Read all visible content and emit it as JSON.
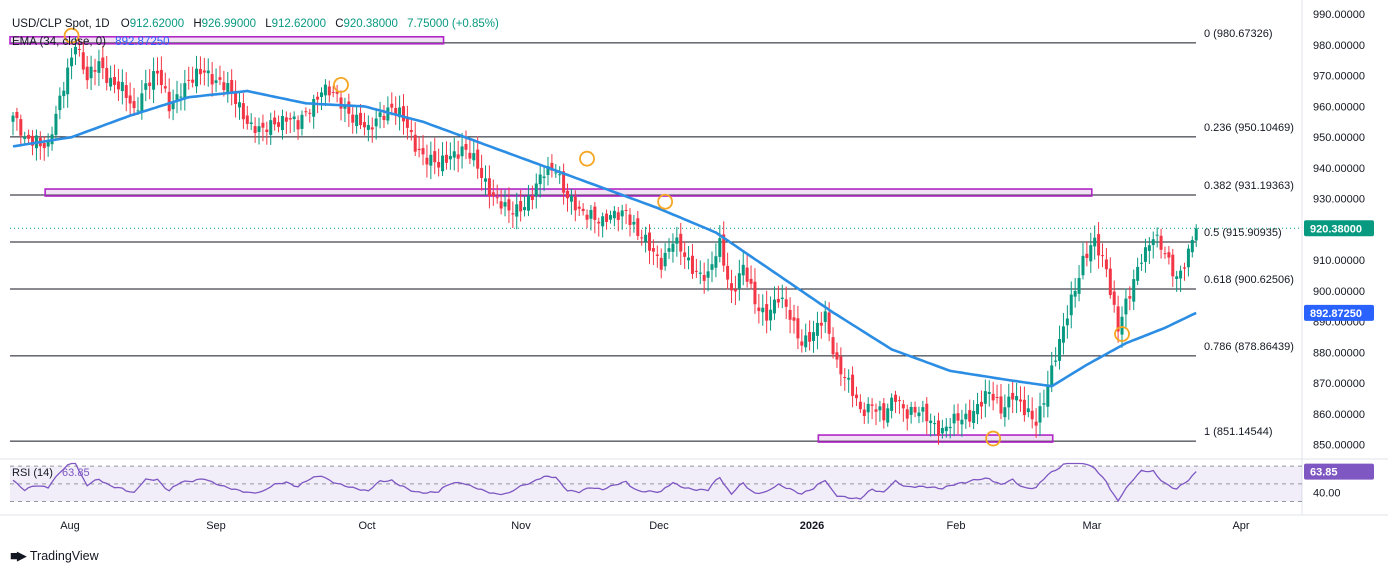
{
  "header": {
    "symbol": "USD/CLP Spot, 1D",
    "o_label": "O",
    "o": "912.62000",
    "h_label": "H",
    "h": "926.99000",
    "l_label": "L",
    "l": "912.62000",
    "c_label": "C",
    "c": "920.38000",
    "change": "7.75000 (+0.85%)",
    "ema_label": "EMA (34, close, 0)",
    "ema_value": "892.87250"
  },
  "colors": {
    "up": "#089981",
    "down": "#f23645",
    "ema": "#2b8de3",
    "fib": "#131722",
    "zone": "#b026c7",
    "circle": "#f5a623",
    "rsi": "#7e57c2",
    "price_tag": "#089981",
    "ema_tag": "#2962ff"
  },
  "chart_data": [
    {
      "type": "candlestick",
      "title": "USD/CLP Spot, 1D",
      "ylim": [
        846,
        992
      ],
      "y_ticks": [
        "990.00000",
        "980.00000",
        "970.00000",
        "960.00000",
        "950.00000",
        "940.00000",
        "930.00000",
        "920.00000",
        "910.00000",
        "900.00000",
        "890.00000",
        "880.00000",
        "870.00000",
        "860.00000",
        "850.00000"
      ],
      "x_ticks": [
        "Aug",
        "Sep",
        "Oct",
        "Nov",
        "Dec",
        "2026",
        "Feb",
        "Mar",
        "Apr"
      ],
      "x_tick_bold": [
        false,
        false,
        false,
        false,
        false,
        true,
        false,
        false,
        false
      ],
      "fib_levels": [
        {
          "label": "0 (980.67326)",
          "value": 980.67326
        },
        {
          "label": "0.236 (950.10469)",
          "value": 950.10469
        },
        {
          "label": "0.382 (931.19363)",
          "value": 931.19363
        },
        {
          "label": "0.5 (915.90935)",
          "value": 915.90935
        },
        {
          "label": "0.618 (900.62506)",
          "value": 900.62506
        },
        {
          "label": "0.786 (878.86439)",
          "value": 878.86439
        },
        {
          "label": "1 (851.14544)",
          "value": 851.14544
        }
      ],
      "last_price": {
        "label": "920.38000",
        "value": 920.38
      },
      "ema_last": {
        "label": "892.87250",
        "value": 892.8725
      },
      "price_anchors": [
        [
          0,
          957
        ],
        [
          3,
          948
        ],
        [
          6,
          950
        ],
        [
          9,
          947
        ],
        [
          11,
          956
        ],
        [
          14,
          972
        ],
        [
          16,
          982
        ],
        [
          19,
          968
        ],
        [
          22,
          974
        ],
        [
          25,
          969
        ],
        [
          28,
          965
        ],
        [
          31,
          958
        ],
        [
          34,
          968
        ],
        [
          37,
          970
        ],
        [
          40,
          960
        ],
        [
          43,
          966
        ],
        [
          46,
          968
        ],
        [
          49,
          972
        ],
        [
          52,
          969
        ],
        [
          55,
          965
        ],
        [
          58,
          960
        ],
        [
          61,
          954
        ],
        [
          64,
          951
        ],
        [
          67,
          955
        ],
        [
          70,
          957
        ],
        [
          73,
          953
        ],
        [
          76,
          960
        ],
        [
          79,
          966
        ],
        [
          82,
          963
        ],
        [
          85,
          960
        ],
        [
          88,
          956
        ],
        [
          91,
          951
        ],
        [
          94,
          958
        ],
        [
          97,
          960
        ],
        [
          100,
          955
        ],
        [
          103,
          948
        ],
        [
          106,
          943
        ],
        [
          109,
          940
        ],
        [
          112,
          945
        ],
        [
          115,
          946
        ],
        [
          118,
          942
        ],
        [
          121,
          936
        ],
        [
          124,
          929
        ],
        [
          127,
          925
        ],
        [
          130,
          928
        ],
        [
          133,
          931
        ],
        [
          136,
          938
        ],
        [
          139,
          941
        ],
        [
          142,
          930
        ],
        [
          145,
          925
        ],
        [
          148,
          926
        ],
        [
          151,
          922
        ],
        [
          154,
          924
        ],
        [
          157,
          927
        ],
        [
          160,
          918
        ],
        [
          163,
          914
        ],
        [
          166,
          910
        ],
        [
          169,
          916
        ],
        [
          172,
          911
        ],
        [
          175,
          907
        ],
        [
          178,
          904
        ],
        [
          181,
          915
        ],
        [
          184,
          900
        ],
        [
          187,
          907
        ],
        [
          190,
          896
        ],
        [
          193,
          893
        ],
        [
          196,
          897
        ],
        [
          199,
          892
        ],
        [
          202,
          884
        ],
        [
          205,
          885
        ],
        [
          208,
          892
        ],
        [
          211,
          877
        ],
        [
          214,
          869
        ],
        [
          217,
          861
        ],
        [
          220,
          864
        ],
        [
          223,
          858
        ],
        [
          226,
          866
        ],
        [
          229,
          861
        ],
        [
          232,
          860
        ],
        [
          235,
          858
        ],
        [
          238,
          855
        ],
        [
          241,
          857
        ],
        [
          244,
          859
        ],
        [
          247,
          863
        ],
        [
          250,
          866
        ],
        [
          253,
          862
        ],
        [
          256,
          867
        ],
        [
          259,
          860
        ],
        [
          262,
          858
        ],
        [
          265,
          870
        ],
        [
          268,
          882
        ],
        [
          271,
          898
        ],
        [
          274,
          910
        ],
        [
          277,
          915
        ],
        [
          280,
          908
        ],
        [
          283,
          888
        ],
        [
          286,
          898
        ],
        [
          289,
          912
        ],
        [
          292,
          918
        ],
        [
          295,
          911
        ],
        [
          298,
          905
        ],
        [
          301,
          912
        ],
        [
          303,
          920.38
        ]
      ],
      "ema_anchors": [
        [
          0,
          947
        ],
        [
          15,
          950
        ],
        [
          30,
          957
        ],
        [
          45,
          963
        ],
        [
          60,
          965
        ],
        [
          75,
          961
        ],
        [
          90,
          960
        ],
        [
          105,
          955
        ],
        [
          120,
          948
        ],
        [
          135,
          941
        ],
        [
          150,
          934
        ],
        [
          165,
          927
        ],
        [
          180,
          919
        ],
        [
          195,
          906
        ],
        [
          210,
          893
        ],
        [
          225,
          881
        ],
        [
          240,
          874
        ],
        [
          255,
          871
        ],
        [
          266,
          869
        ],
        [
          275,
          876
        ],
        [
          285,
          883
        ],
        [
          295,
          888
        ],
        [
          303,
          892.87
        ]
      ],
      "circles": [
        [
          15,
          983
        ],
        [
          84,
          967
        ],
        [
          147,
          943
        ],
        [
          167,
          929
        ],
        [
          251,
          852
        ],
        [
          284,
          886
        ]
      ],
      "zones": [
        {
          "start": 0,
          "end": 110,
          "value": 981.5
        },
        {
          "start": 9,
          "end": 276,
          "value": 932
        },
        {
          "start": 207,
          "end": 266,
          "value": 852
        }
      ]
    },
    {
      "type": "line",
      "title": "RSI (14)",
      "value_label": "63.85",
      "ylim": [
        17,
        77
      ],
      "y_ticks": [
        "40.00"
      ],
      "bands": [
        70,
        50,
        30
      ],
      "last": {
        "label": "63.85",
        "value": 63.85
      }
    }
  ],
  "branding": {
    "name": "TradingView"
  }
}
